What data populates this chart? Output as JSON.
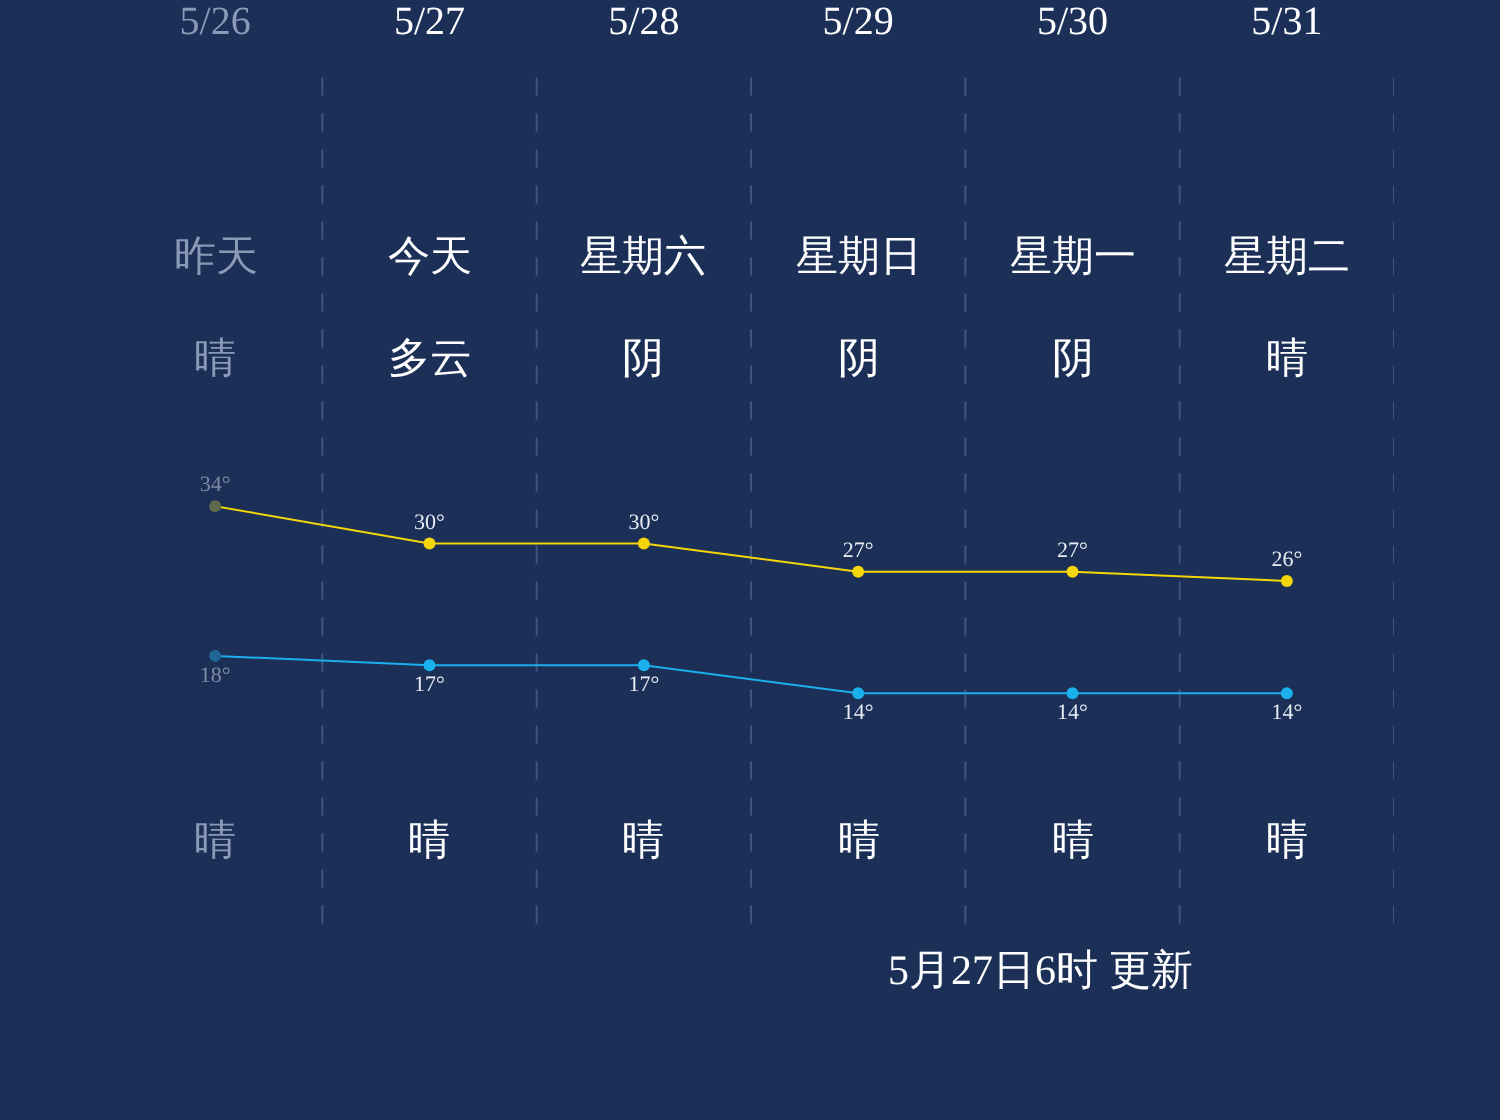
{
  "chart_data": {
    "type": "line",
    "categories": [
      "5/26",
      "5/27",
      "5/28",
      "5/29",
      "5/30",
      "5/31"
    ],
    "series": [
      {
        "color": "#f5d60a",
        "colors": [
          "#5e6a4c",
          "#f5d60a",
          "#f5d60a",
          "#f5d60a",
          "#f5d60a",
          "#f5d60a"
        ],
        "values": [
          34,
          30,
          30,
          27,
          27,
          26
        ],
        "value_labels": [
          "34°",
          "30°",
          "30°",
          "27°",
          "27°",
          "26°"
        ]
      },
      {
        "color": "#1ab0ec",
        "colors": [
          "#1e6797",
          "#1ab0ec",
          "#1ab0ec",
          "#1ab0ec",
          "#1ab0ec",
          "#1ab0ec"
        ],
        "values": [
          18,
          17,
          17,
          14,
          14,
          14
        ],
        "value_labels": [
          "18°",
          "17°",
          "17°",
          "14°",
          "14°",
          "14°"
        ]
      }
    ],
    "marker": "circle",
    "grid": "x",
    "legend": false,
    "annotations": [
      "昨天",
      "今天",
      "星期六",
      "星期日",
      "星期一",
      "星期二",
      "晴",
      "多云",
      "阴",
      "阴",
      "阴",
      "晴",
      "晴",
      "晴",
      "晴",
      "晴",
      "晴",
      "晴",
      "5月27日6时 更新"
    ]
  }
}
